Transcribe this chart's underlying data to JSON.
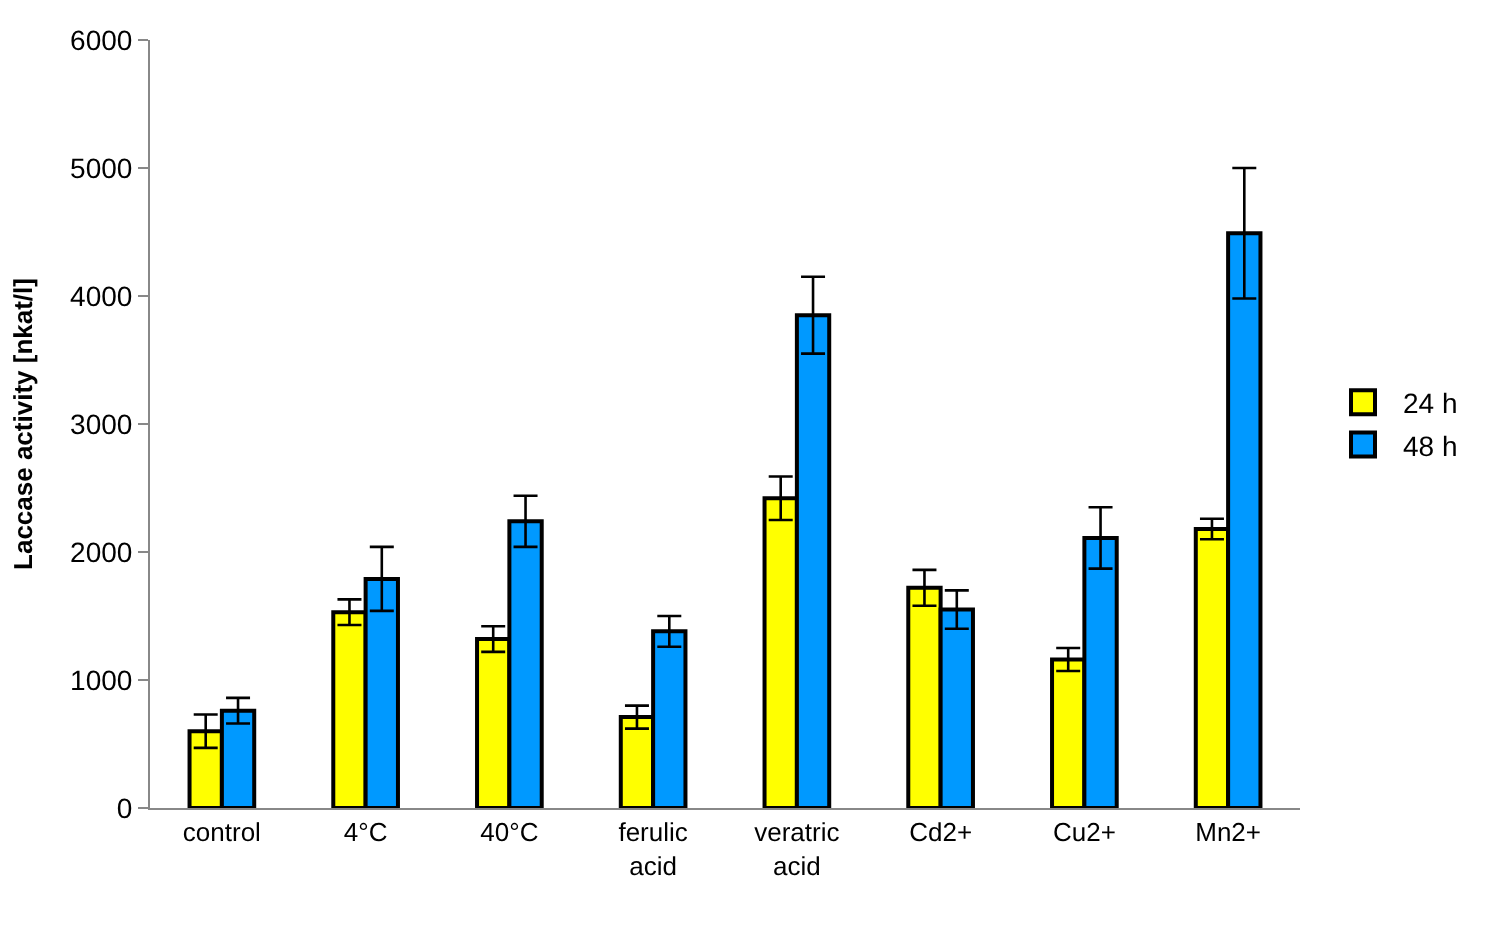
{
  "chart_data": {
    "type": "bar",
    "ylabel": "Laccase activity [nkat/l]",
    "categories": [
      "control",
      "4°C",
      "40°C",
      "ferulic acid",
      "veratric acid",
      "Cd2+",
      "Cu2+",
      "Mn2+"
    ],
    "series": [
      {
        "name": "24 h",
        "color": "#ffff00",
        "values": [
          600,
          1530,
          1320,
          710,
          2420,
          1720,
          1160,
          2180
        ],
        "errors": [
          130,
          100,
          100,
          90,
          170,
          140,
          90,
          80
        ]
      },
      {
        "name": "48 h",
        "color": "#0099ff",
        "values": [
          760,
          1790,
          2240,
          1380,
          3850,
          1550,
          2110,
          4490
        ],
        "errors": [
          100,
          250,
          200,
          120,
          300,
          150,
          240,
          510
        ]
      }
    ],
    "ylim": [
      0,
      6000
    ],
    "yticks": [
      0,
      1000,
      2000,
      3000,
      4000,
      5000,
      6000
    ],
    "legend": "right"
  }
}
